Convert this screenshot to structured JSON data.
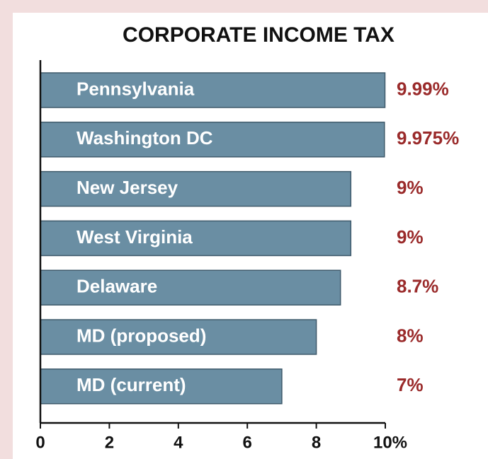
{
  "chart_data": {
    "type": "bar",
    "orientation": "horizontal",
    "title": "CORPORATE INCOME TAX",
    "categories": [
      "Pennsylvania",
      "Washington DC",
      "New Jersey",
      "West Virginia",
      "Delaware",
      "MD (proposed)",
      "MD (current)"
    ],
    "values": [
      9.99,
      9.975,
      9,
      9,
      8.7,
      8,
      7
    ],
    "value_labels": [
      "9.99%",
      "9.975%",
      "9%",
      "9%",
      "8.7%",
      "8%",
      "7%"
    ],
    "color": "#6a8ea3",
    "xlim": [
      0,
      10
    ],
    "xticks": [
      0,
      2,
      4,
      6,
      8,
      {
        "value": 10,
        "label": "10%"
      }
    ]
  }
}
